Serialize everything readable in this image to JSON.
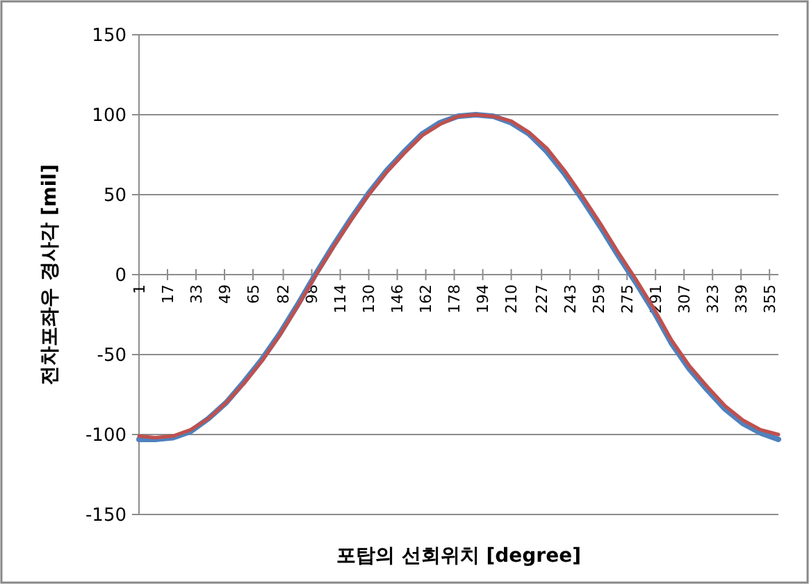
{
  "chart_data": {
    "type": "line",
    "xlabel": "포탑의 선회위치 [degree]",
    "ylabel": "전차포좌우 경사각 [mil]",
    "x": [
      1,
      10,
      20,
      30,
      40,
      50,
      60,
      70,
      80,
      90,
      100,
      110,
      120,
      130,
      140,
      150,
      160,
      170,
      180,
      190,
      200,
      210,
      220,
      230,
      240,
      250,
      260,
      270,
      280,
      290,
      300,
      310,
      320,
      330,
      340,
      350,
      360
    ],
    "series": [
      {
        "color": "#4f81bd",
        "values": [
          -103,
          -103,
          -102,
          -98,
          -90,
          -80,
          -67,
          -53,
          -37,
          -19,
          0,
          18,
          35,
          51,
          65,
          77,
          88,
          95,
          99,
          100,
          99,
          95,
          88,
          77,
          63,
          47,
          30,
          12,
          -5,
          -23,
          -43,
          -59,
          -72,
          -84,
          -93,
          -99,
          -103
        ]
      },
      {
        "color": "#c0504d",
        "values": [
          -101,
          -102,
          -101,
          -97,
          -90,
          -80,
          -68,
          -54,
          -38,
          -20,
          -1,
          17,
          34,
          50,
          64,
          76,
          87,
          94,
          99,
          100,
          99,
          96,
          89,
          79,
          65,
          49,
          32,
          14,
          -3,
          -21,
          -41,
          -57,
          -70,
          -82,
          -91,
          -97,
          -100
        ]
      }
    ],
    "xlim": [
      1,
      360
    ],
    "xticks": [
      1,
      17,
      33,
      49,
      65,
      82,
      98,
      114,
      130,
      146,
      162,
      178,
      194,
      210,
      227,
      243,
      259,
      275,
      291,
      307,
      323,
      339,
      355
    ],
    "ylim": [
      -150,
      150
    ],
    "yticks": [
      -150,
      -100,
      -50,
      0,
      50,
      100,
      150
    ],
    "grid": "y",
    "marker": "none",
    "line_style": "solid"
  }
}
